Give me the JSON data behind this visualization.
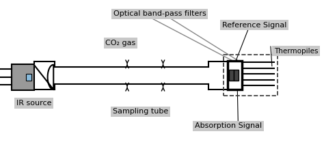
{
  "bg_color": "#ffffff",
  "line_color": "#000000",
  "gray_fill": "#999999",
  "label_bg": "#c8c8c8",
  "figsize": [
    4.74,
    2.21
  ],
  "dpi": 100,
  "labels": {
    "optical": "Optical band-pass filters",
    "co2": "CO₂ gas",
    "reference": "Reference Signal",
    "ir": "IR source",
    "sampling": "Sampling tube",
    "thermopiles": "Thermopiles",
    "absorption": "Absorption Signal"
  }
}
